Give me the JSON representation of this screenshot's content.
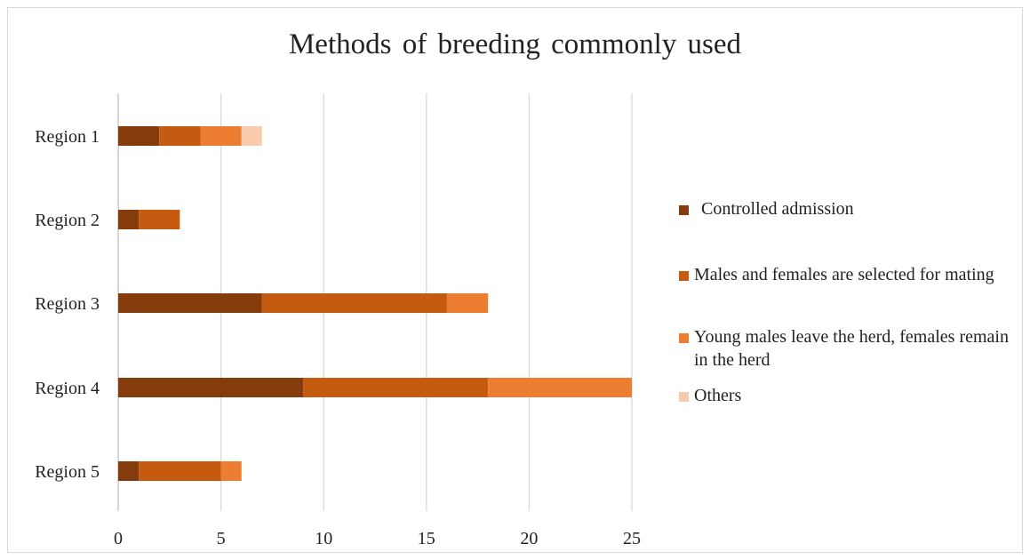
{
  "chart_data": {
    "type": "bar",
    "orientation": "horizontal",
    "stacked": true,
    "title": "Methods of breeding commonly used",
    "xlabel": "",
    "ylabel": "",
    "categories": [
      "Region 1",
      "Region 2",
      "Region 3",
      "Region 4",
      "Region 5"
    ],
    "xlim": [
      0,
      25
    ],
    "xticks": [
      0,
      5,
      10,
      15,
      20,
      25
    ],
    "grid": "vertical",
    "legend_position": "right",
    "series": [
      {
        "name": "Controlled admission",
        "color": "#843c0c",
        "values": [
          2,
          1,
          7,
          9,
          1
        ]
      },
      {
        "name": "Males and females are selected for mating",
        "color": "#c55a11",
        "values": [
          2,
          2,
          9,
          9,
          4
        ]
      },
      {
        "name": "Young males leave the herd, females remain in the herd",
        "color": "#ed7d31",
        "values": [
          2,
          0,
          2,
          7,
          1
        ]
      },
      {
        "name": "Others",
        "color": "#f8cbad",
        "values": [
          1,
          0,
          0,
          0,
          0
        ]
      }
    ]
  }
}
